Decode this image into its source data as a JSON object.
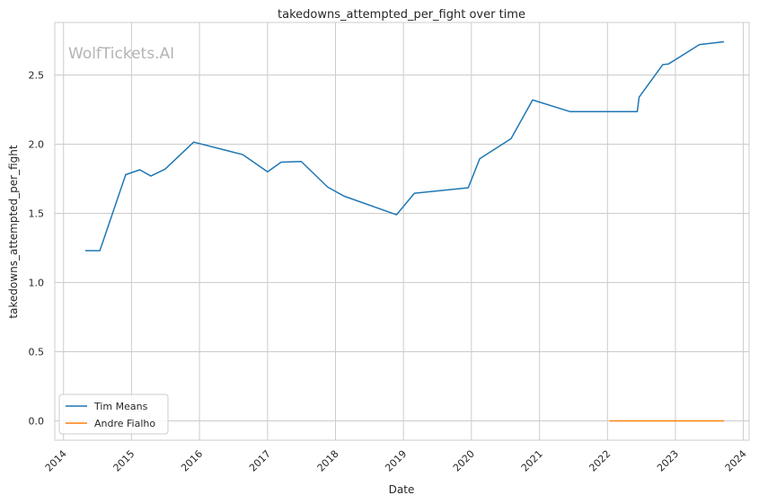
{
  "chart_data": {
    "type": "line",
    "title": "takedowns_attempted_per_fight over time",
    "xlabel": "Date",
    "ylabel": "takedowns_attempted_per_fight",
    "xlim": [
      "2013-11-15",
      "2024-02-01"
    ],
    "ylim": [
      -0.14,
      2.88
    ],
    "x_ticks": [
      "2014",
      "2015",
      "2016",
      "2017",
      "2018",
      "2019",
      "2020",
      "2021",
      "2022",
      "2023",
      "2024"
    ],
    "y_ticks": [
      "0.0",
      "0.5",
      "1.0",
      "1.5",
      "2.0",
      "2.5"
    ],
    "grid": true,
    "legend_position": "lower-left",
    "watermark": "WolfTickets.AI",
    "series": [
      {
        "name": "Tim Means",
        "color": "#1f77b4",
        "points": [
          [
            "2014-05-01",
            1.23
          ],
          [
            "2014-07-15",
            1.23
          ],
          [
            "2014-12-01",
            1.78
          ],
          [
            "2015-02-15",
            1.815
          ],
          [
            "2015-04-15",
            1.77
          ],
          [
            "2015-07-01",
            1.82
          ],
          [
            "2015-12-01",
            2.015
          ],
          [
            "2016-08-20",
            1.925
          ],
          [
            "2017-01-01",
            1.8
          ],
          [
            "2017-03-15",
            1.87
          ],
          [
            "2017-07-01",
            1.875
          ],
          [
            "2017-11-20",
            1.69
          ],
          [
            "2018-02-15",
            1.625
          ],
          [
            "2018-11-25",
            1.49
          ],
          [
            "2019-03-01",
            1.645
          ],
          [
            "2019-12-15",
            1.685
          ],
          [
            "2020-02-15",
            1.895
          ],
          [
            "2020-08-01",
            2.04
          ],
          [
            "2020-11-25",
            2.32
          ],
          [
            "2021-06-15",
            2.235
          ],
          [
            "2022-06-10",
            2.235
          ],
          [
            "2022-06-20",
            2.34
          ],
          [
            "2022-10-25",
            2.575
          ],
          [
            "2022-11-25",
            2.58
          ],
          [
            "2023-05-10",
            2.72
          ],
          [
            "2023-09-15",
            2.74
          ]
        ]
      },
      {
        "name": "Andre Fialho",
        "color": "#ff7f0e",
        "points": [
          [
            "2022-01-15",
            0.0
          ],
          [
            "2023-09-15",
            0.0
          ]
        ]
      }
    ]
  }
}
